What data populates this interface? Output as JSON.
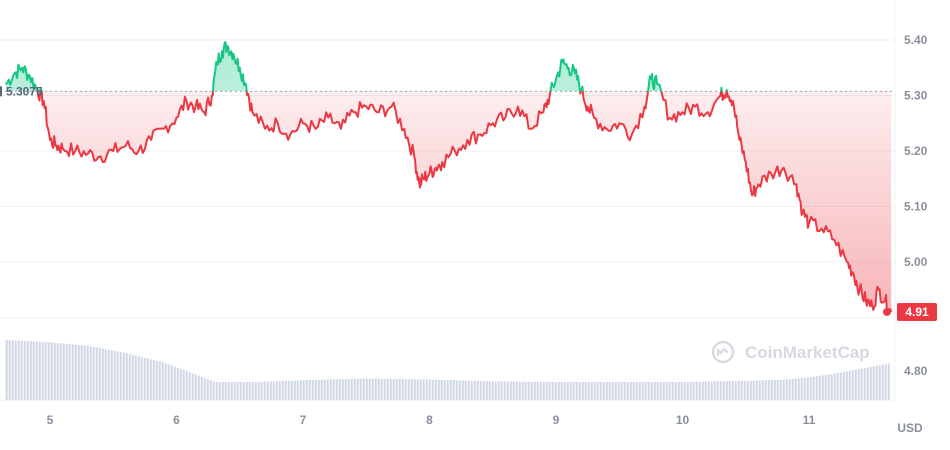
{
  "chart_data": {
    "type": "line",
    "currency": "USD",
    "watermark": "CoinMarketCap",
    "baseline": {
      "value": 5.3075,
      "label": "5.3075"
    },
    "current": {
      "value": 4.91,
      "label": "4.91"
    },
    "y_ticks": [
      "5.40",
      "5.30",
      "5.20",
      "5.10",
      "5.00",
      "4.80"
    ],
    "x_ticks": [
      "5",
      "6",
      "7",
      "8",
      "9",
      "10",
      "11"
    ],
    "colors": {
      "up": "#16c784",
      "down": "#ea3943",
      "grid": "#eff2f5",
      "volume": "#cfd6e4",
      "text": "#8a8f9c"
    },
    "ylim": [
      4.91,
      5.4
    ],
    "x_range": [
      4.65,
      11.65
    ],
    "series": [
      {
        "type": "line",
        "x": [
          4.65,
          4.72,
          4.78,
          4.84,
          4.9,
          4.95,
          5.0,
          5.05,
          5.1,
          5.2,
          5.3,
          5.4,
          5.5,
          5.6,
          5.7,
          5.8,
          5.9,
          6.0,
          6.08,
          6.15,
          6.22,
          6.28,
          6.32,
          6.36,
          6.4,
          6.45,
          6.5,
          6.55,
          6.6,
          6.7,
          6.8,
          6.9,
          7.0,
          7.1,
          7.2,
          7.3,
          7.4,
          7.5,
          7.6,
          7.7,
          7.8,
          7.88,
          7.92,
          7.95,
          8.0,
          8.05,
          8.1,
          8.2,
          8.3,
          8.4,
          8.5,
          8.6,
          8.7,
          8.8,
          8.9,
          8.95,
          9.0,
          9.05,
          9.1,
          9.15,
          9.2,
          9.25,
          9.3,
          9.4,
          9.5,
          9.6,
          9.7,
          9.75,
          9.8,
          9.9,
          10.0,
          10.1,
          10.2,
          10.3,
          10.35,
          10.4,
          10.45,
          10.5,
          10.55,
          10.6,
          10.7,
          10.8,
          10.9,
          10.95,
          11.0,
          11.1,
          11.2,
          11.3,
          11.35,
          11.4,
          11.45,
          11.5,
          11.55,
          11.6,
          11.65
        ],
        "values": [
          5.32,
          5.34,
          5.35,
          5.335,
          5.31,
          5.29,
          5.22,
          5.21,
          5.205,
          5.2,
          5.195,
          5.19,
          5.2,
          5.21,
          5.2,
          5.22,
          5.24,
          5.26,
          5.29,
          5.28,
          5.27,
          5.3,
          5.36,
          5.38,
          5.39,
          5.375,
          5.35,
          5.32,
          5.27,
          5.24,
          5.25,
          5.23,
          5.25,
          5.24,
          5.26,
          5.24,
          5.27,
          5.28,
          5.27,
          5.28,
          5.24,
          5.19,
          5.14,
          5.15,
          5.16,
          5.17,
          5.18,
          5.2,
          5.22,
          5.23,
          5.25,
          5.26,
          5.28,
          5.24,
          5.27,
          5.3,
          5.33,
          5.36,
          5.35,
          5.34,
          5.31,
          5.28,
          5.26,
          5.24,
          5.25,
          5.23,
          5.28,
          5.33,
          5.32,
          5.26,
          5.27,
          5.28,
          5.27,
          5.3,
          5.31,
          5.29,
          5.22,
          5.18,
          5.12,
          5.14,
          5.16,
          5.17,
          5.14,
          5.09,
          5.07,
          5.06,
          5.04,
          5.0,
          4.98,
          4.95,
          4.93,
          4.92,
          4.95,
          4.93,
          4.91
        ]
      },
      {
        "type": "volume",
        "x": [
          4.65,
          5.0,
          5.3,
          5.6,
          5.9,
          6.1,
          6.3,
          6.6,
          7.0,
          7.5,
          8.0,
          8.5,
          9.0,
          9.5,
          10.0,
          10.5,
          10.8,
          11.0,
          11.2,
          11.4,
          11.65
        ],
        "values": [
          100,
          96,
          90,
          78,
          62,
          46,
          30,
          30,
          33,
          36,
          34,
          31,
          30,
          30,
          30,
          32,
          34,
          38,
          44,
          52,
          62
        ]
      }
    ]
  }
}
